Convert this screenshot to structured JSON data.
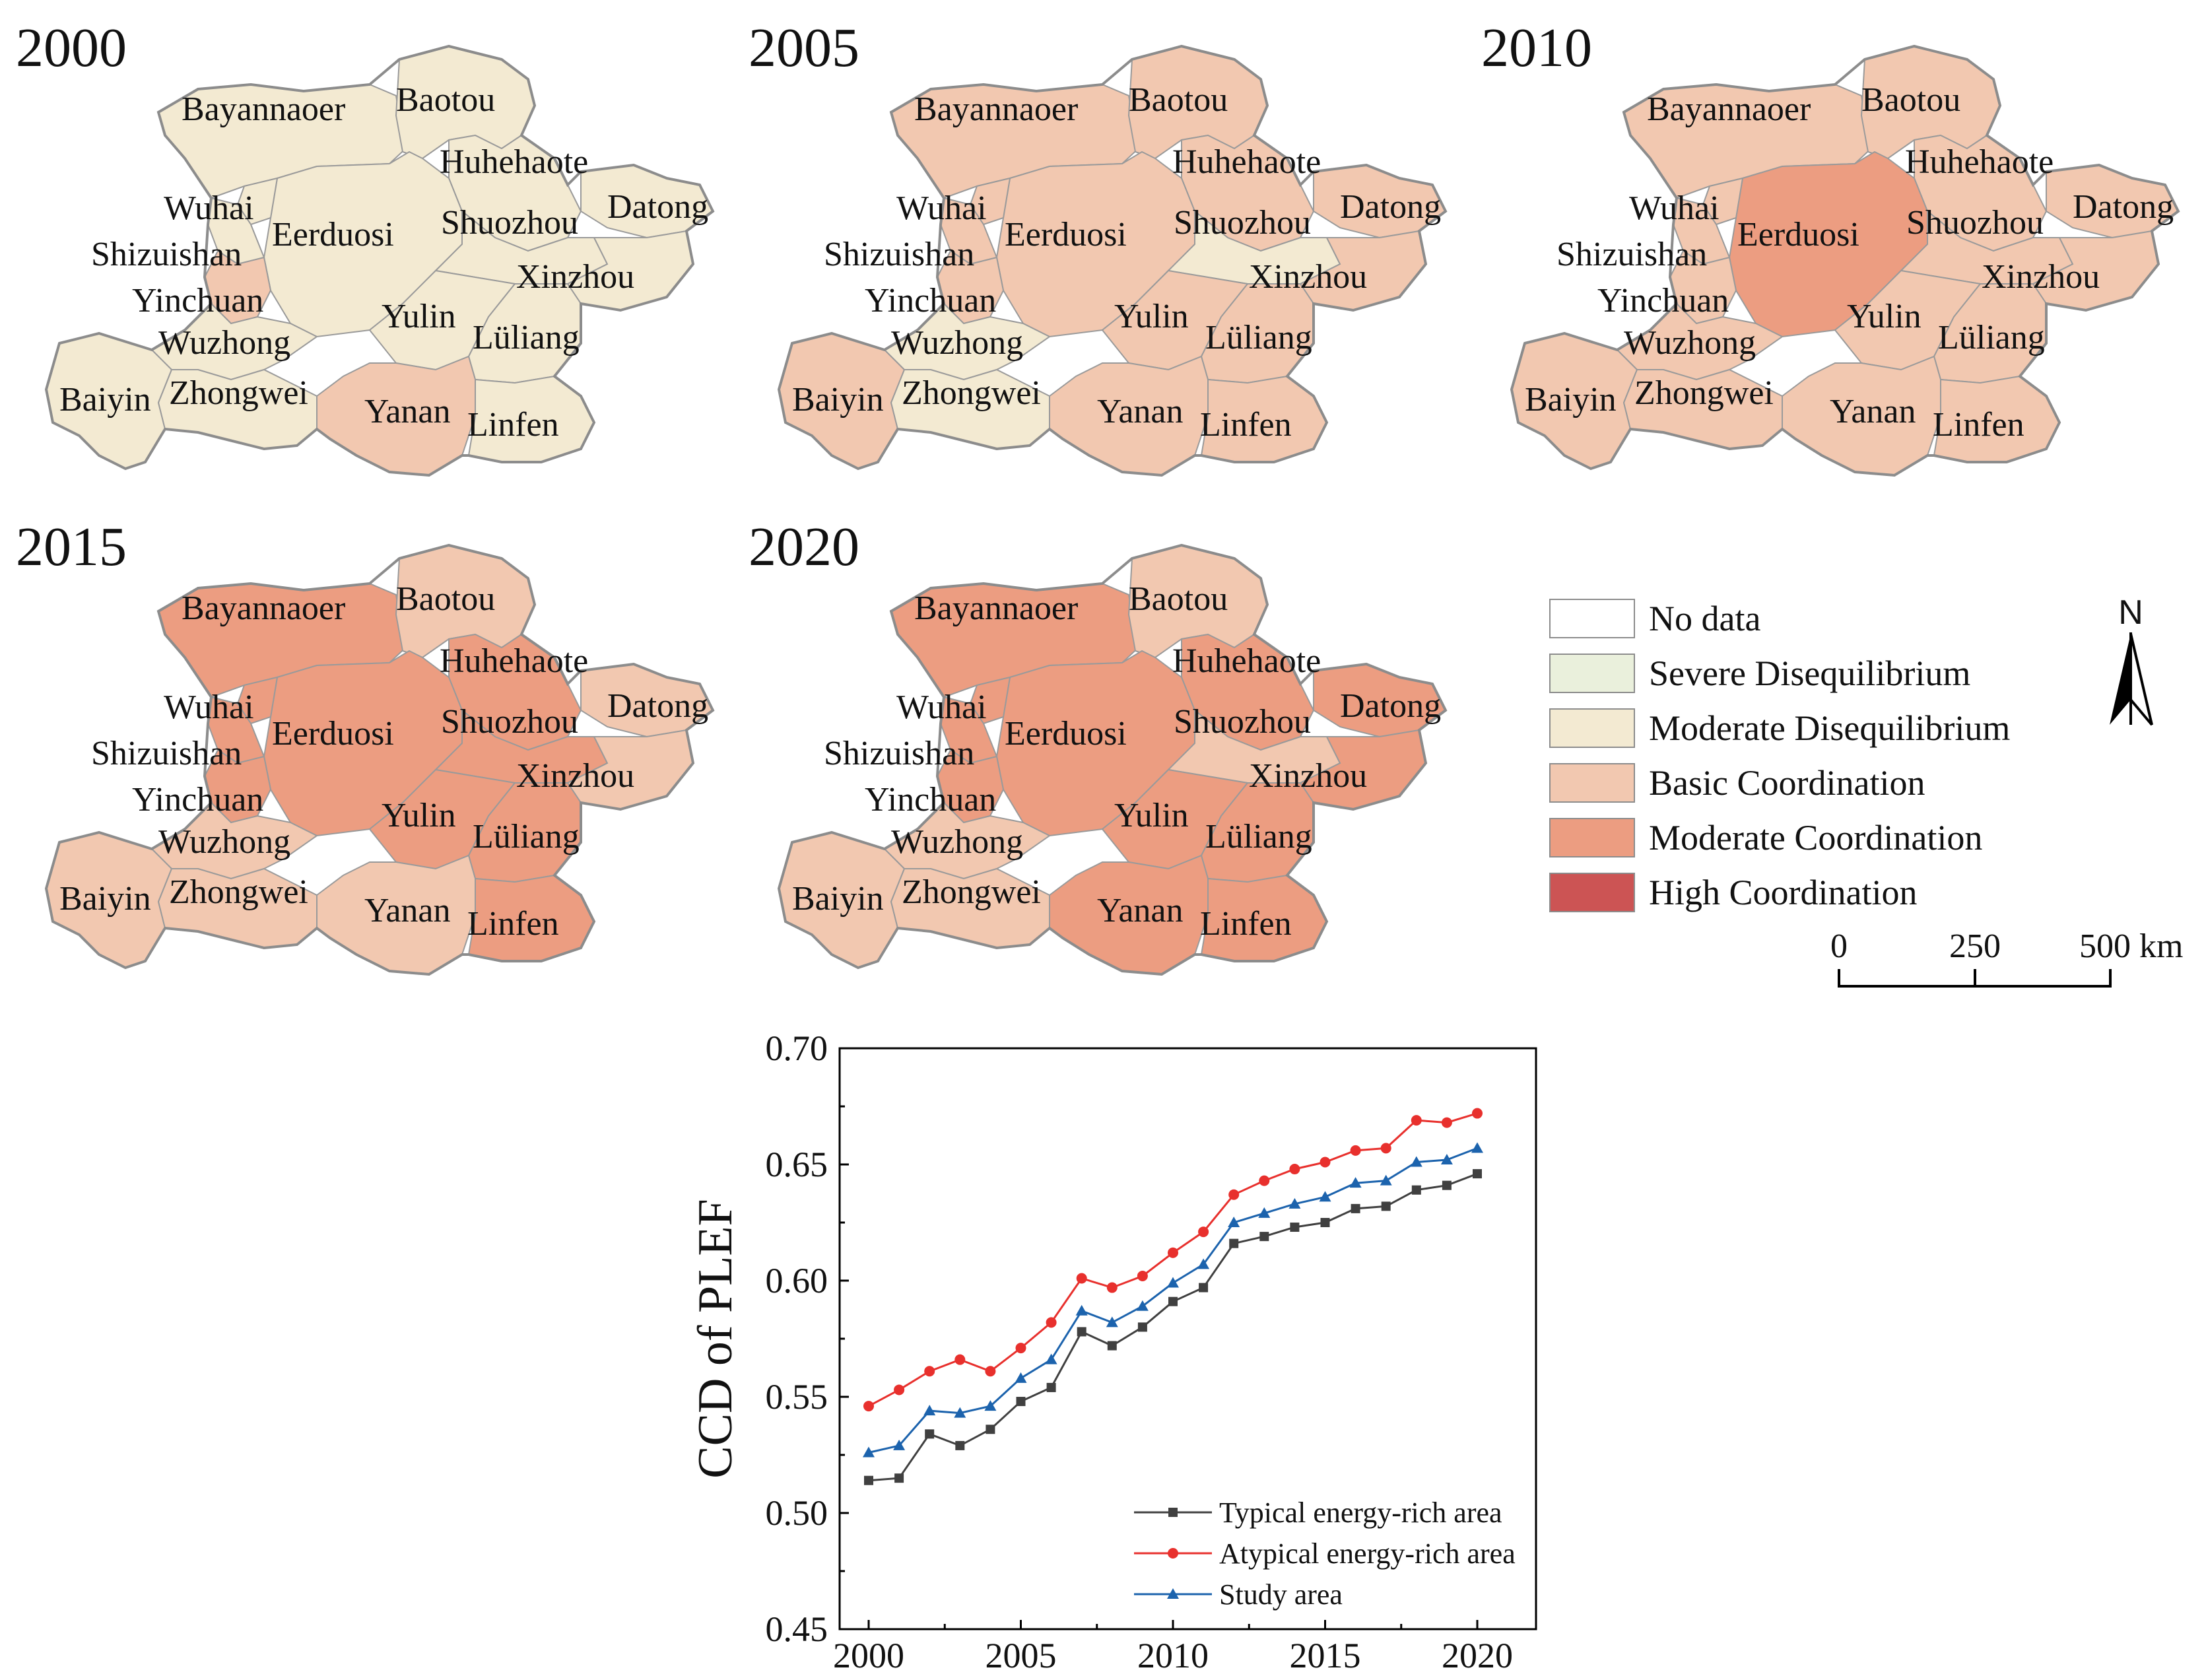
{
  "maps": [
    {
      "year": "2000",
      "colors": {
        "Bayannaoer": "moderate_dis",
        "Baotou": "moderate_dis",
        "Huhehaote": "moderate_dis",
        "Datong": "moderate_dis",
        "Eerduosi": "moderate_dis",
        "Shuozhou": "moderate_dis",
        "Xinzhou": "moderate_dis",
        "Wuhai": "moderate_dis",
        "Shizuishan": "moderate_dis",
        "Yinchuan": "basic",
        "Wuzhong": "moderate_dis",
        "Zhongwei": "moderate_dis",
        "Baiyin": "moderate_dis",
        "Yulin": "moderate_dis",
        "Luliang": "moderate_dis",
        "Yanan": "basic",
        "Linfen": "moderate_dis"
      }
    },
    {
      "year": "2005",
      "colors": {
        "Bayannaoer": "basic",
        "Baotou": "basic",
        "Huhehaote": "basic",
        "Datong": "basic",
        "Eerduosi": "basic",
        "Shuozhou": "moderate_dis",
        "Xinzhou": "basic",
        "Wuhai": "basic",
        "Shizuishan": "basic",
        "Yinchuan": "basic",
        "Wuzhong": "moderate_dis",
        "Zhongwei": "moderate_dis",
        "Baiyin": "basic",
        "Yulin": "basic",
        "Luliang": "basic",
        "Yanan": "basic",
        "Linfen": "basic"
      }
    },
    {
      "year": "2010",
      "colors": {
        "Bayannaoer": "basic",
        "Baotou": "basic",
        "Huhehaote": "basic",
        "Datong": "basic",
        "Eerduosi": "moderate_coord",
        "Shuozhou": "basic",
        "Xinzhou": "basic",
        "Wuhai": "basic",
        "Shizuishan": "basic",
        "Yinchuan": "basic",
        "Wuzhong": "basic",
        "Zhongwei": "basic",
        "Baiyin": "basic",
        "Yulin": "basic",
        "Luliang": "basic",
        "Yanan": "basic",
        "Linfen": "basic"
      }
    },
    {
      "year": "2015",
      "colors": {
        "Bayannaoer": "moderate_coord",
        "Baotou": "basic",
        "Huhehaote": "moderate_coord",
        "Datong": "basic",
        "Eerduosi": "moderate_coord",
        "Shuozhou": "moderate_coord",
        "Xinzhou": "basic",
        "Wuhai": "moderate_coord",
        "Shizuishan": "moderate_coord",
        "Yinchuan": "moderate_coord",
        "Wuzhong": "basic",
        "Zhongwei": "basic",
        "Baiyin": "basic",
        "Yulin": "moderate_coord",
        "Luliang": "moderate_coord",
        "Yanan": "basic",
        "Linfen": "moderate_coord"
      }
    },
    {
      "year": "2020",
      "colors": {
        "Bayannaoer": "moderate_coord",
        "Baotou": "basic",
        "Huhehaote": "moderate_coord",
        "Datong": "moderate_coord",
        "Eerduosi": "moderate_coord",
        "Shuozhou": "basic",
        "Xinzhou": "moderate_coord",
        "Wuhai": "moderate_coord",
        "Shizuishan": "moderate_coord",
        "Yinchuan": "moderate_coord",
        "Wuzhong": "basic",
        "Zhongwei": "basic",
        "Baiyin": "basic",
        "Yulin": "moderate_coord",
        "Luliang": "moderate_coord",
        "Yanan": "moderate_coord",
        "Linfen": "moderate_coord"
      }
    }
  ],
  "city_names": {
    "Bayannaoer": "Bayannaoer",
    "Baotou": "Baotou",
    "Huhehaote": "Huhehaote",
    "Wuhai": "Wuhai",
    "Eerduosi": "Eerduosi",
    "Shuozhou": "Shuozhou",
    "Datong": "Datong",
    "Shizuishan": "Shizuishan",
    "Xinzhou": "Xinzhou",
    "Yinchuan": "Yinchuan",
    "Yulin": "Yulin",
    "Luliang": "Lüliang",
    "Wuzhong": "Wuzhong",
    "Baiyin": "Baiyin",
    "Zhongwei": "Zhongwei",
    "Yanan": "Yanan",
    "Linfen": "Linfen"
  },
  "classes": {
    "no_data": "#ffffff",
    "severe_dis": "#eaf0dc",
    "moderate_dis": "#f3ead2",
    "basic": "#f2c8b0",
    "moderate_coord": "#ec9d81",
    "high_coord": "#cc5454"
  },
  "legend": {
    "items": [
      {
        "key": "no_data",
        "label": "No data"
      },
      {
        "key": "severe_dis",
        "label": "Severe Disequilibrium"
      },
      {
        "key": "moderate_dis",
        "label": "Moderate Disequilibrium"
      },
      {
        "key": "basic",
        "label": "Basic Coordination"
      },
      {
        "key": "moderate_coord",
        "label": "Moderate Coordination"
      },
      {
        "key": "high_coord",
        "label": "High Coordination"
      }
    ]
  },
  "north_label": "N",
  "scale_bar": {
    "labels": [
      "0",
      "250",
      "500 km"
    ]
  },
  "chart_data": {
    "type": "line",
    "ylabel": "CCD of PLEF",
    "xlabel": "",
    "ylim": [
      0.45,
      0.7
    ],
    "yticks": [
      "0.45",
      "0.50",
      "0.55",
      "0.60",
      "0.65",
      "0.70"
    ],
    "xticks": [
      "2000",
      "2005",
      "2010",
      "2015",
      "2020"
    ],
    "x": [
      2000,
      2001,
      2002,
      2003,
      2004,
      2005,
      2006,
      2007,
      2008,
      2009,
      2010,
      2011,
      2012,
      2013,
      2014,
      2015,
      2016,
      2017,
      2018,
      2019,
      2020
    ],
    "series": [
      {
        "name": "Typical energy-rich area",
        "color": "#404040",
        "marker": "square",
        "values": [
          0.514,
          0.515,
          0.534,
          0.529,
          0.536,
          0.548,
          0.554,
          0.578,
          0.572,
          0.58,
          0.591,
          0.597,
          0.616,
          0.619,
          0.623,
          0.625,
          0.631,
          0.632,
          0.639,
          0.641,
          0.646
        ]
      },
      {
        "name": "Atypical energy-rich area",
        "color": "#e8302d",
        "marker": "circle",
        "values": [
          0.546,
          0.553,
          0.561,
          0.566,
          0.561,
          0.571,
          0.582,
          0.601,
          0.597,
          0.602,
          0.612,
          0.621,
          0.637,
          0.643,
          0.648,
          0.651,
          0.656,
          0.657,
          0.669,
          0.668,
          0.672
        ]
      },
      {
        "name": "Study area",
        "color": "#1c63ad",
        "marker": "triangle",
        "values": [
          0.526,
          0.529,
          0.544,
          0.543,
          0.546,
          0.558,
          0.566,
          0.587,
          0.582,
          0.589,
          0.599,
          0.607,
          0.625,
          0.629,
          0.633,
          0.636,
          0.642,
          0.643,
          0.651,
          0.652,
          0.657
        ]
      }
    ]
  }
}
